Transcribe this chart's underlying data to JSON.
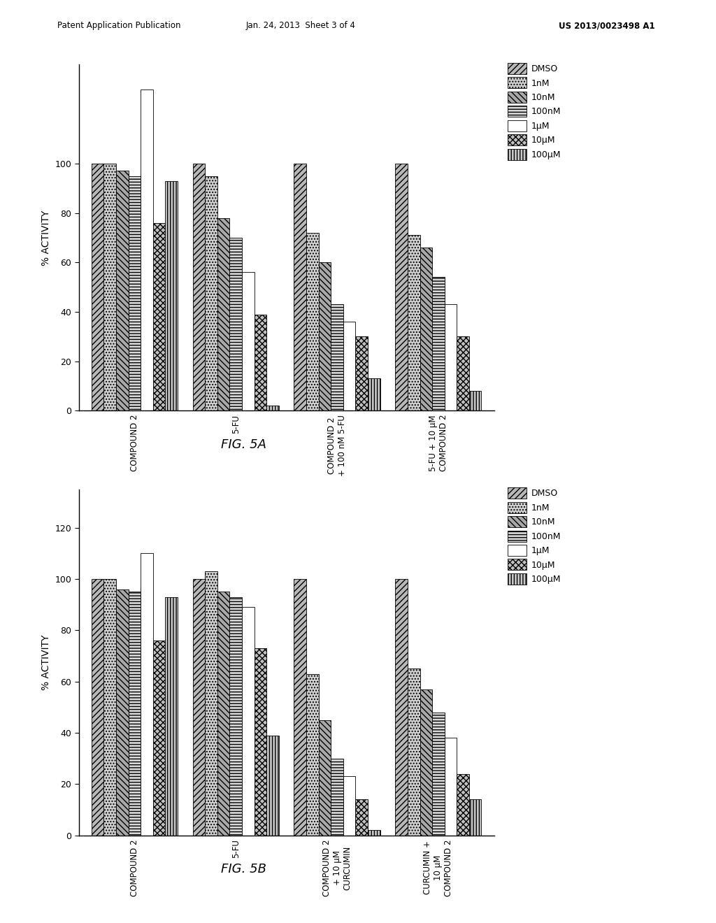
{
  "fig5a": {
    "groups": [
      "COMPOUND 2",
      "5-FU",
      "COMPOUND 2\n+ 100 nM 5-FU",
      "5-FU + 10 μM\nCOMPOUND 2"
    ],
    "series_labels": [
      "DMSO",
      "1nM",
      "10nM",
      "100nM",
      "1μM",
      "10μM",
      "100μM"
    ],
    "data": [
      [
        100,
        100,
        97,
        95,
        130,
        76,
        93
      ],
      [
        100,
        95,
        78,
        70,
        56,
        39,
        2
      ],
      [
        100,
        72,
        60,
        43,
        36,
        30,
        13
      ],
      [
        100,
        71,
        66,
        54,
        43,
        30,
        8
      ]
    ],
    "ylabel": "% ACTIVITY",
    "ylim": [
      0,
      140
    ],
    "yticks": [
      0,
      20,
      40,
      60,
      80,
      100
    ],
    "fig_label": "FIG. 5A"
  },
  "fig5b": {
    "groups": [
      "COMPOUND 2",
      "5-FU",
      "COMPOUND 2\n+ 10 μM\nCURCUMIN",
      "CURCUMIN +\n10 μM\nCOMPOUND 2"
    ],
    "series_labels": [
      "DMSO",
      "1nM",
      "10nM",
      "100nM",
      "1μM",
      "10μM",
      "100μM"
    ],
    "data": [
      [
        100,
        100,
        96,
        95,
        110,
        76,
        93
      ],
      [
        100,
        103,
        95,
        93,
        89,
        73,
        39
      ],
      [
        100,
        63,
        45,
        30,
        23,
        14,
        2
      ],
      [
        100,
        65,
        57,
        48,
        38,
        24,
        14
      ]
    ],
    "ylabel": "% ACTIVITY",
    "ylim": [
      0,
      135
    ],
    "yticks": [
      0,
      20,
      40,
      60,
      80,
      100,
      120
    ],
    "fig_label": "FIG. 5B"
  },
  "header_left": "Patent Application Publication",
  "header_mid": "Jan. 24, 2013  Sheet 3 of 4",
  "header_right": "US 2013/0023498 A1",
  "background_color": "#ffffff"
}
